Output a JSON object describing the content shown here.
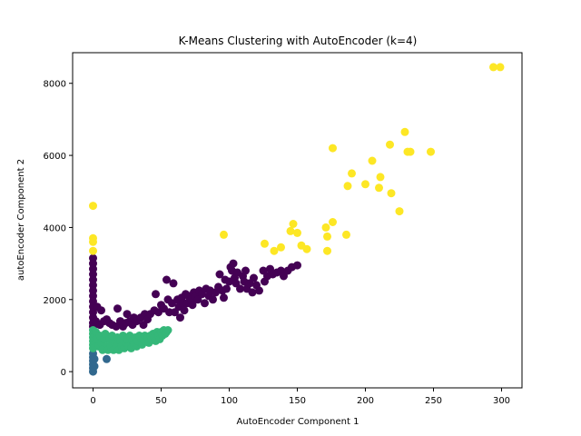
{
  "chart_data": {
    "type": "scatter",
    "title": "K-Means Clustering with AutoEncoder (k=4)",
    "xlabel": "AutoEncoder Component 1",
    "ylabel": "autoEncoder Component 2",
    "xlim": [
      -15,
      315
    ],
    "ylim": [
      -450,
      8850
    ],
    "xticks": [
      "0",
      "50",
      "100",
      "150",
      "200",
      "250",
      "300"
    ],
    "yticks": [
      "0",
      "2000",
      "4000",
      "6000",
      "8000"
    ],
    "grid": false,
    "legend": "none",
    "series": [
      {
        "color": "#440154",
        "points": [
          [
            0,
            3150
          ],
          [
            0,
            3000
          ],
          [
            0,
            2850
          ],
          [
            0,
            2700
          ],
          [
            0,
            2550
          ],
          [
            0,
            2400
          ],
          [
            0,
            2250
          ],
          [
            0,
            2100
          ],
          [
            0,
            1950
          ],
          [
            0,
            1800
          ],
          [
            0,
            1650
          ],
          [
            0,
            1500
          ],
          [
            0,
            1350
          ],
          [
            0,
            1250
          ],
          [
            2,
            1400
          ],
          [
            3,
            1800
          ],
          [
            5,
            1300
          ],
          [
            6,
            1700
          ],
          [
            8,
            1400
          ],
          [
            10,
            1450
          ],
          [
            12,
            1350
          ],
          [
            14,
            1300
          ],
          [
            17,
            1250
          ],
          [
            18,
            1750
          ],
          [
            20,
            1400
          ],
          [
            22,
            1250
          ],
          [
            24,
            1350
          ],
          [
            25,
            1600
          ],
          [
            27,
            1400
          ],
          [
            29,
            1300
          ],
          [
            30,
            1500
          ],
          [
            32,
            1400
          ],
          [
            35,
            1500
          ],
          [
            37,
            1300
          ],
          [
            38,
            1600
          ],
          [
            40,
            1450
          ],
          [
            42,
            1600
          ],
          [
            45,
            1700
          ],
          [
            46,
            2150
          ],
          [
            48,
            1650
          ],
          [
            50,
            1850
          ],
          [
            52,
            1750
          ],
          [
            54,
            2550
          ],
          [
            55,
            2000
          ],
          [
            56,
            1650
          ],
          [
            58,
            1900
          ],
          [
            59,
            2450
          ],
          [
            60,
            1650
          ],
          [
            62,
            2000
          ],
          [
            63,
            1800
          ],
          [
            64,
            1500
          ],
          [
            65,
            2050
          ],
          [
            66,
            1900
          ],
          [
            67,
            1700
          ],
          [
            68,
            2150
          ],
          [
            69,
            1900
          ],
          [
            70,
            2100
          ],
          [
            72,
            2000
          ],
          [
            73,
            1850
          ],
          [
            74,
            2200
          ],
          [
            75,
            2100
          ],
          [
            77,
            2000
          ],
          [
            78,
            2250
          ],
          [
            80,
            2150
          ],
          [
            82,
            1900
          ],
          [
            83,
            2300
          ],
          [
            85,
            2100
          ],
          [
            86,
            2250
          ],
          [
            88,
            2000
          ],
          [
            90,
            2200
          ],
          [
            92,
            2350
          ],
          [
            93,
            2700
          ],
          [
            95,
            2250
          ],
          [
            96,
            2050
          ],
          [
            97,
            2550
          ],
          [
            98,
            2300
          ],
          [
            100,
            2500
          ],
          [
            101,
            2900
          ],
          [
            102,
            2800
          ],
          [
            103,
            3000
          ],
          [
            104,
            2600
          ],
          [
            105,
            2450
          ],
          [
            106,
            2750
          ],
          [
            108,
            2300
          ],
          [
            110,
            2650
          ],
          [
            111,
            2500
          ],
          [
            112,
            2800
          ],
          [
            113,
            2300
          ],
          [
            115,
            2450
          ],
          [
            117,
            2200
          ],
          [
            118,
            2600
          ],
          [
            120,
            2400
          ],
          [
            122,
            2250
          ],
          [
            125,
            2800
          ],
          [
            126,
            2500
          ],
          [
            128,
            2650
          ],
          [
            130,
            2850
          ],
          [
            132,
            2700
          ],
          [
            135,
            2750
          ],
          [
            138,
            2800
          ],
          [
            140,
            2650
          ],
          [
            143,
            2800
          ],
          [
            146,
            2900
          ],
          [
            150,
            2950
          ]
        ]
      },
      {
        "color": "#31688e",
        "points": [
          [
            0,
            0
          ],
          [
            0,
            100
          ],
          [
            0,
            200
          ],
          [
            0,
            300
          ],
          [
            0,
            400
          ],
          [
            0,
            500
          ],
          [
            1,
            150
          ],
          [
            1,
            350
          ],
          [
            10,
            350
          ]
        ]
      },
      {
        "color": "#35b779",
        "points": [
          [
            0,
            1150
          ],
          [
            0,
            1050
          ],
          [
            0,
            950
          ],
          [
            0,
            850
          ],
          [
            0,
            750
          ],
          [
            0,
            650
          ],
          [
            2,
            1100
          ],
          [
            3,
            900
          ],
          [
            4,
            700
          ],
          [
            5,
            1000
          ],
          [
            6,
            800
          ],
          [
            7,
            600
          ],
          [
            8,
            900
          ],
          [
            9,
            1050
          ],
          [
            10,
            700
          ],
          [
            11,
            600
          ],
          [
            12,
            900
          ],
          [
            13,
            700
          ],
          [
            14,
            1000
          ],
          [
            15,
            600
          ],
          [
            16,
            800
          ],
          [
            17,
            700
          ],
          [
            18,
            950
          ],
          [
            19,
            600
          ],
          [
            20,
            850
          ],
          [
            21,
            700
          ],
          [
            22,
            1000
          ],
          [
            23,
            650
          ],
          [
            24,
            800
          ],
          [
            25,
            900
          ],
          [
            26,
            700
          ],
          [
            27,
            1000
          ],
          [
            28,
            650
          ],
          [
            29,
            850
          ],
          [
            30,
            750
          ],
          [
            31,
            950
          ],
          [
            32,
            700
          ],
          [
            33,
            850
          ],
          [
            34,
            1000
          ],
          [
            35,
            800
          ],
          [
            36,
            750
          ],
          [
            37,
            900
          ],
          [
            38,
            1000
          ],
          [
            39,
            850
          ],
          [
            40,
            950
          ],
          [
            41,
            800
          ],
          [
            42,
            1000
          ],
          [
            43,
            900
          ],
          [
            44,
            1050
          ],
          [
            45,
            950
          ],
          [
            46,
            850
          ],
          [
            47,
            1100
          ],
          [
            48,
            1000
          ],
          [
            49,
            900
          ],
          [
            50,
            1100
          ],
          [
            51,
            1000
          ],
          [
            52,
            1150
          ],
          [
            53,
            1050
          ],
          [
            54,
            1100
          ],
          [
            55,
            1150
          ]
        ]
      },
      {
        "color": "#fde725",
        "points": [
          [
            0,
            4600
          ],
          [
            0,
            3700
          ],
          [
            0,
            3600
          ],
          [
            0,
            3350
          ],
          [
            96,
            3800
          ],
          [
            126,
            3550
          ],
          [
            133,
            3350
          ],
          [
            138,
            3450
          ],
          [
            145,
            3900
          ],
          [
            147,
            4100
          ],
          [
            150,
            3850
          ],
          [
            153,
            3500
          ],
          [
            157,
            3400
          ],
          [
            171,
            4000
          ],
          [
            172,
            3750
          ],
          [
            172,
            3350
          ],
          [
            176,
            4150
          ],
          [
            176,
            6200
          ],
          [
            186,
            3800
          ],
          [
            187,
            5150
          ],
          [
            190,
            5500
          ],
          [
            200,
            5200
          ],
          [
            205,
            5850
          ],
          [
            210,
            5100
          ],
          [
            211,
            5400
          ],
          [
            218,
            6300
          ],
          [
            219,
            4950
          ],
          [
            225,
            4450
          ],
          [
            229,
            6650
          ],
          [
            231,
            6100
          ],
          [
            233,
            6100
          ],
          [
            248,
            6100
          ],
          [
            294,
            8450
          ],
          [
            299,
            8450
          ]
        ]
      }
    ]
  }
}
